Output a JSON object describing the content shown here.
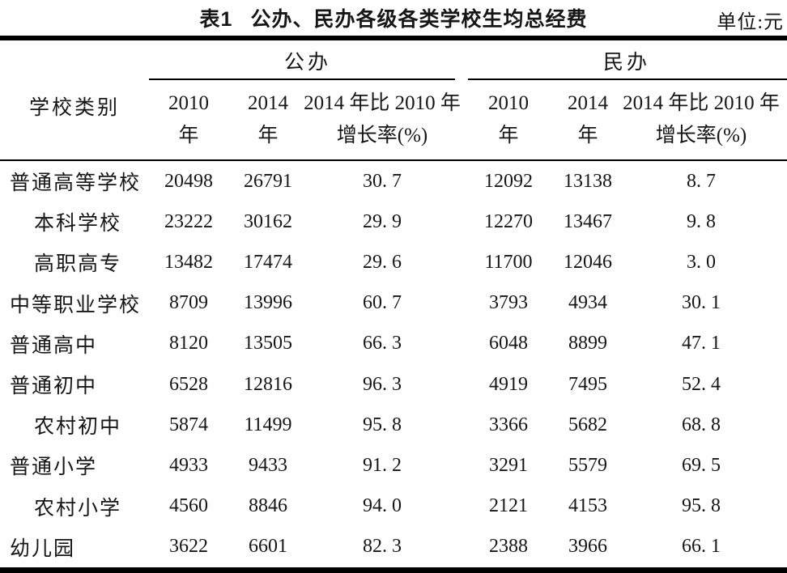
{
  "page": {
    "table_label": "表1",
    "title": "公办、民办各级各类学校生均总经费",
    "unit_label": "单位:元"
  },
  "table": {
    "row_header": "学校类别",
    "group_public": "公办",
    "group_private": "民办",
    "col_2010_line1": "2010",
    "col_2010_line2": "年",
    "col_2014_line1": "2014",
    "col_2014_line2": "年",
    "col_growth_line1": "2014 年比 2010 年",
    "col_growth_line2": "增长率(%)",
    "rows": [
      {
        "category": "普通高等学校",
        "indent": false,
        "public_2010": "20498",
        "public_2014": "26791",
        "public_growth": "30. 7",
        "private_2010": "12092",
        "private_2014": "13138",
        "private_growth": "8. 7"
      },
      {
        "category": "本科学校",
        "indent": true,
        "public_2010": "23222",
        "public_2014": "30162",
        "public_growth": "29. 9",
        "private_2010": "12270",
        "private_2014": "13467",
        "private_growth": "9. 8"
      },
      {
        "category": "高职高专",
        "indent": true,
        "public_2010": "13482",
        "public_2014": "17474",
        "public_growth": "29. 6",
        "private_2010": "11700",
        "private_2014": "12046",
        "private_growth": "3. 0"
      },
      {
        "category": "中等职业学校",
        "indent": false,
        "public_2010": "8709",
        "public_2014": "13996",
        "public_growth": "60. 7",
        "private_2010": "3793",
        "private_2014": "4934",
        "private_growth": "30. 1"
      },
      {
        "category": "普通高中",
        "indent": false,
        "public_2010": "8120",
        "public_2014": "13505",
        "public_growth": "66. 3",
        "private_2010": "6048",
        "private_2014": "8899",
        "private_growth": "47. 1"
      },
      {
        "category": "普通初中",
        "indent": false,
        "public_2010": "6528",
        "public_2014": "12816",
        "public_growth": "96. 3",
        "private_2010": "4919",
        "private_2014": "7495",
        "private_growth": "52. 4"
      },
      {
        "category": "农村初中",
        "indent": true,
        "public_2010": "5874",
        "public_2014": "11499",
        "public_growth": "95. 8",
        "private_2010": "3366",
        "private_2014": "5682",
        "private_growth": "68. 8"
      },
      {
        "category": "普通小学",
        "indent": false,
        "public_2010": "4933",
        "public_2014": "9433",
        "public_growth": "91. 2",
        "private_2010": "3291",
        "private_2014": "5579",
        "private_growth": "69. 5"
      },
      {
        "category": "农村小学",
        "indent": true,
        "public_2010": "4560",
        "public_2014": "8846",
        "public_growth": "94. 0",
        "private_2010": "2121",
        "private_2014": "4153",
        "private_growth": "95. 8"
      },
      {
        "category": "幼儿园",
        "indent": false,
        "public_2010": "3622",
        "public_2014": "6601",
        "public_growth": "82. 3",
        "private_2010": "2388",
        "private_2014": "3966",
        "private_growth": "66. 1"
      }
    ]
  }
}
